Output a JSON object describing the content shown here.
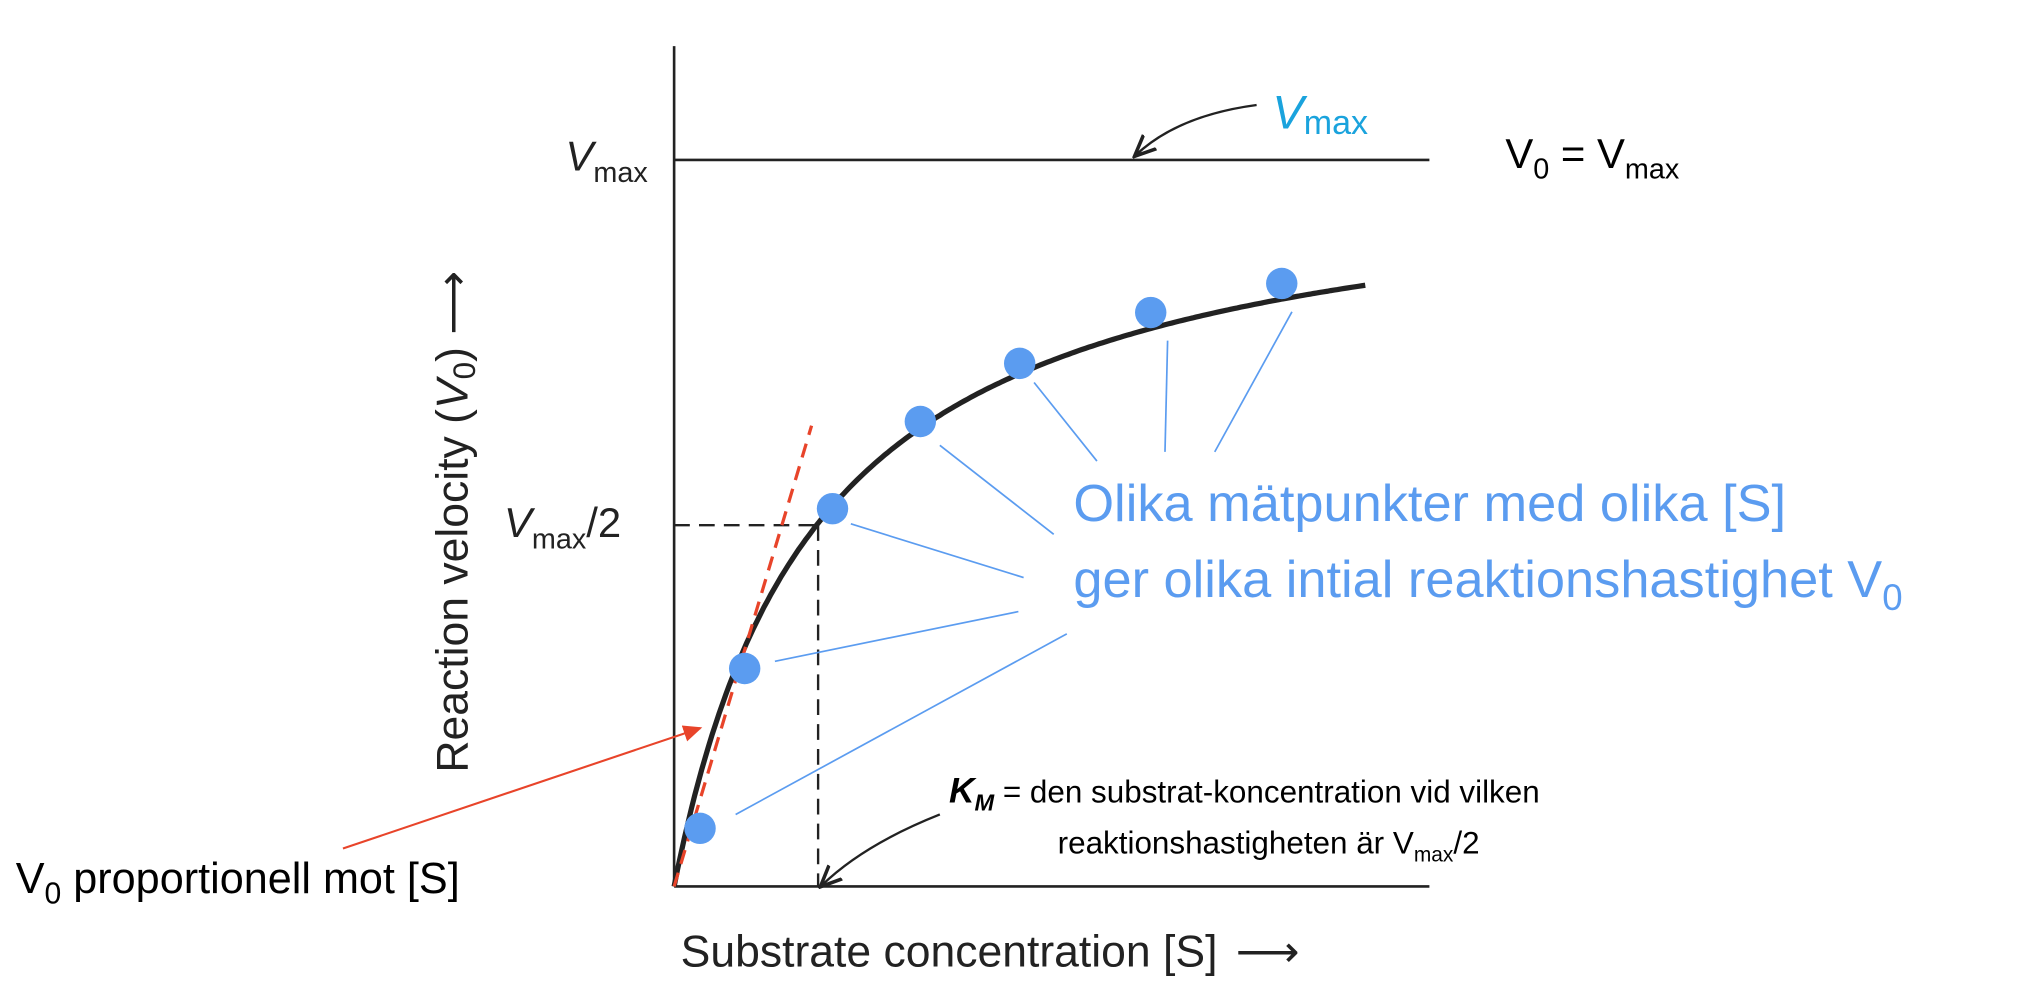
{
  "colors": {
    "curve": "#222222",
    "points": "#5b9cf0",
    "tangent": "#e8442a",
    "annotation_blue": "#5b9cf0",
    "vmax_label": "#1aa3dd"
  },
  "chart_data": {
    "type": "line",
    "xlabel": "Substrate concentration [S]",
    "ylabel": "Reaction velocity (V0)",
    "y_ticks": [
      {
        "label": "Vmax",
        "value": 1.0
      },
      {
        "label": "Vmax/2",
        "value": 0.5
      }
    ],
    "x_ticks": [
      {
        "label": "KM",
        "value": 1.0
      }
    ],
    "points": {
      "S_over_Km": [
        0.18,
        0.49,
        1.1,
        1.71,
        2.4,
        3.31,
        4.22
      ],
      "v_over_Vmax": [
        0.08,
        0.3,
        0.52,
        0.64,
        0.72,
        0.79,
        0.83
      ]
    },
    "curve": {
      "model": "Michaelis-Menten",
      "Vmax": 1.0,
      "Km": 1.0,
      "x_max": 4.8
    },
    "grid": false
  },
  "labels": {
    "vmax_axis": {
      "main": "V",
      "sub": "max"
    },
    "vmax_half_axis": {
      "main": "V",
      "sub": "max",
      "tail": "/2"
    },
    "vmax_callout": {
      "main": "V",
      "sub": "max"
    },
    "v0_eq_vmax": {
      "a": "V",
      "a_sub": "0",
      "eq": " = V",
      "b_sub": "max"
    },
    "y_axis": {
      "text": "Reaction velocity (",
      "var": "V",
      "sub": "0",
      "close": ")",
      "arrow": " ⟶"
    },
    "x_axis": {
      "text": "Substrate concentration [S]",
      "arrow": "⟶"
    },
    "points_note": {
      "line1": "Olika mätpunkter med olika [S]",
      "line2": "ger olika intial reaktionshastighet V",
      "line2_sub": "0"
    },
    "km_note": {
      "km": "K",
      "km_sub": "M",
      "line1": " = den substrat-koncentration vid vilken",
      "line2": "reaktionshastigheten är V",
      "line2_sub": "max",
      "line2_tail": "/2"
    },
    "proportional_note": {
      "v": "V",
      "v_sub": "0",
      "text": " proportionell mot [S]"
    }
  }
}
